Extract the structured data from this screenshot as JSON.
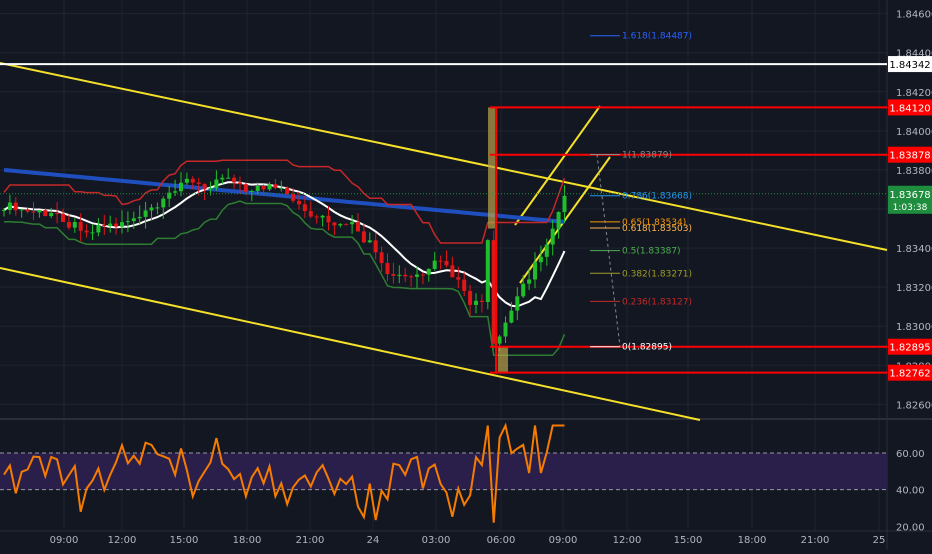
{
  "colors": {
    "background": "#131722",
    "grid": "#363a45",
    "axis_text": "#b2b5be",
    "candle_up": "#26a69a",
    "candle_down": "#ef5350",
    "candle_green": "#1fbf2c",
    "candle_red": "#e01717",
    "ma_blue": "#1f4fbf",
    "band_red": "#c62828",
    "band_green": "#2e7d32",
    "ma_white": "#ffffff",
    "channel": "#f5e02a",
    "rsi_line": "#f57c00",
    "rsi_band": "#2a1f4a",
    "price_tag_white": "#ffffff",
    "price_tag_red": "#ff0000",
    "current_price": "#1e8e3e"
  },
  "chart_data": {
    "type": "candlestick",
    "main_pane": {
      "ylim": [
        1.8253,
        1.8467
      ],
      "y_ticks": [
        "1.84600",
        "1.84400",
        "1.84200",
        "1.84000",
        "1.83800",
        "1.83600",
        "1.83400",
        "1.83200",
        "1.83000",
        "1.82800",
        "1.82600"
      ],
      "x_ticks": [
        "09:00",
        "12:00",
        "15:00",
        "18:00",
        "21:00",
        "24",
        "03:00",
        "06:00",
        "09:00",
        "12:00",
        "15:00",
        "18:00",
        "21:00",
        "25"
      ],
      "horizontal_lines": [
        {
          "label": "1.84342",
          "value": 1.84342,
          "color": "#ffffff"
        },
        {
          "label": "1.84120",
          "value": 1.8412,
          "color": "#ff0000"
        },
        {
          "label": "1.83878",
          "value": 1.83878,
          "color": "#ff0000"
        },
        {
          "label": "1.82895",
          "value": 1.82895,
          "color": "#ff0000"
        },
        {
          "label": "1.82762",
          "value": 1.82762,
          "color": "#ff0000"
        }
      ],
      "current_price": {
        "label": "1.83678",
        "countdown": "1:03:38",
        "value": 1.83678
      },
      "fibonacci_levels": [
        {
          "label": "1.618(1.84487)",
          "value": 1.84487,
          "color": "#2962ff"
        },
        {
          "label": "1(1.83879)",
          "value": 1.83879,
          "color": "#888888"
        },
        {
          "label": "0.786(1.83668)",
          "value": 1.83668,
          "color": "#2196f3"
        },
        {
          "label": "0.65(1.83534)",
          "value": 1.83534,
          "color": "#ff9800"
        },
        {
          "label": "0.618(1.83503)",
          "value": 1.83503,
          "color": "#ffb74d"
        },
        {
          "label": "0.5(1.83387)",
          "value": 1.83387,
          "color": "#4caf50"
        },
        {
          "label": "0.382(1.83271)",
          "value": 1.83271,
          "color": "#9e9d24"
        },
        {
          "label": "0.236(1.83127)",
          "value": 1.83127,
          "color": "#c62828"
        },
        {
          "label": "0(1.82895)",
          "value": 1.82895,
          "color": "#ffffff"
        }
      ]
    },
    "rsi_pane": {
      "ylim": [
        18,
        78
      ],
      "y_ticks": [
        "60.00",
        "40.00",
        "20.00"
      ],
      "band": [
        40,
        60
      ]
    }
  }
}
